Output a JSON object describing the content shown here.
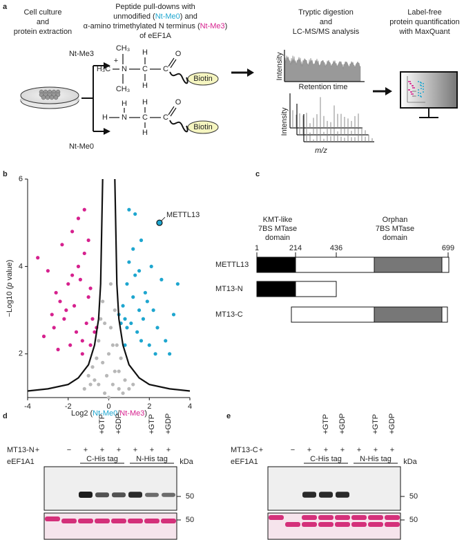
{
  "panel_a": {
    "label": "a",
    "step1": [
      "Cell culture",
      "and",
      "protein extraction"
    ],
    "step2": [
      [
        "Peptide pull-downs with"
      ],
      [
        "unmodified (",
        "Nt-Me0",
        ") and"
      ],
      [
        "α-amino trimethylated N terminus (",
        "Nt-Me3",
        ")"
      ],
      [
        "of eEF1A"
      ]
    ],
    "me3": {
      "label": "Nt-Me3",
      "atoms": [
        "CH₃",
        "H₃C",
        "N",
        "+",
        "CH₃",
        "C",
        "H",
        "H",
        "C",
        "O"
      ],
      "tag": "Biotin"
    },
    "me0": {
      "label": "Nt-Me0",
      "atoms": [
        "H",
        "H",
        "N",
        "C",
        "H",
        "H",
        "C",
        "O"
      ],
      "tag": "Biotin"
    },
    "step3": [
      "Tryptic digestion",
      "and",
      "LC-MS/MS analysis"
    ],
    "spectra": {
      "y_label": "Intensity",
      "x_label": "Retention time",
      "y_label_2": "Intensity",
      "x_label_2": "m/z"
    },
    "step4": [
      "Label-free",
      "protein quantification",
      "with MaxQuant"
    ]
  },
  "chart_data": {
    "type": "scatter",
    "panel_label": "b",
    "x_label": [
      "Log2 (",
      "Nt-Me0",
      "/",
      "Nt-Me3",
      ")"
    ],
    "y_label": [
      "−Log10 (",
      "p",
      " value)"
    ],
    "xlim": [
      -4,
      4
    ],
    "ylim": [
      1,
      6
    ],
    "xticks": [
      -4,
      -2,
      0,
      2,
      4
    ],
    "yticks": [
      2,
      4,
      6
    ],
    "series": [
      {
        "color": "#d6218e",
        "x": [
          -3.5,
          -3.2,
          -3.0,
          -2.8,
          -2.6,
          -2.5,
          -2.3,
          -2.2,
          -2.0,
          -1.9,
          -1.8,
          -1.7,
          -1.6,
          -1.5,
          -1.4,
          -1.3,
          -1.2,
          -1.1,
          -1.0,
          -0.9,
          -0.8,
          -0.7,
          -0.6,
          -2.7,
          -2.1,
          -1.5,
          -1.2,
          -0.9,
          -1.8,
          -2.4,
          -1.3,
          -1.0
        ],
        "y": [
          4.2,
          2.4,
          3.9,
          2.9,
          3.4,
          2.1,
          4.5,
          2.8,
          3.6,
          2.2,
          4.8,
          3.1,
          2.5,
          5.1,
          3.7,
          2.0,
          4.3,
          2.7,
          3.3,
          2.2,
          2.8,
          2.5,
          2.6,
          2.6,
          3.0,
          4.0,
          5.3,
          3.5,
          3.8,
          3.2,
          2.3,
          4.6
        ]
      },
      {
        "color": "#1ea6cf",
        "x": [
          0.5,
          0.6,
          0.7,
          0.8,
          0.9,
          1.0,
          1.1,
          1.2,
          1.3,
          1.4,
          1.5,
          1.6,
          1.7,
          1.8,
          2.0,
          2.1,
          2.2,
          2.4,
          2.6,
          2.8,
          3.0,
          3.2,
          3.4,
          1.0,
          1.3,
          1.6,
          0.9,
          1.2,
          1.9,
          2.3,
          0.8,
          1.5
        ],
        "y": [
          2.9,
          2.7,
          3.1,
          2.2,
          3.6,
          4.1,
          2.7,
          3.3,
          5.2,
          2.5,
          3.9,
          4.6,
          2.8,
          3.4,
          2.2,
          4.0,
          3.0,
          2.6,
          3.7,
          2.3,
          2.0,
          2.9,
          3.6,
          5.3,
          3.8,
          2.3,
          2.6,
          4.4,
          3.2,
          2.0,
          2.8,
          3.0
        ]
      },
      {
        "color": "#b8b8b8",
        "x": [
          -1.2,
          -1.0,
          -0.8,
          -0.6,
          -0.5,
          -0.4,
          -0.3,
          -0.2,
          -0.1,
          0,
          0.1,
          0.2,
          0.3,
          0.4,
          0.5,
          0.6,
          0.8,
          1.0,
          1.2,
          -0.7,
          -0.3,
          0.2,
          0.5,
          -0.2,
          0.1,
          0.3,
          -0.5,
          0.7,
          -0.9,
          0.0
        ],
        "y": [
          1.2,
          1.5,
          1.7,
          1.9,
          2.3,
          2.8,
          3.2,
          1.1,
          1.5,
          2.0,
          2.6,
          1.3,
          3.0,
          2.2,
          1.6,
          1.9,
          1.4,
          1.2,
          1.3,
          1.4,
          1.8,
          2.2,
          1.2,
          2.7,
          3.6,
          1.6,
          1.3,
          1.1,
          1.3,
          1.0
        ]
      }
    ],
    "threshold_curves": [
      {
        "x": [
          -4,
          -3,
          -2,
          -1.5,
          -1,
          -0.7,
          -0.5,
          -0.4,
          -0.3
        ],
        "y": [
          1.15,
          1.2,
          1.3,
          1.45,
          1.75,
          2.2,
          2.8,
          3.6,
          6
        ]
      },
      {
        "x": [
          0.3,
          0.4,
          0.5,
          0.7,
          1,
          1.5,
          2,
          3,
          4
        ],
        "y": [
          6,
          3.6,
          2.8,
          2.2,
          1.75,
          1.45,
          1.3,
          1.2,
          1.15
        ]
      }
    ],
    "highlight": {
      "label": "METTL13",
      "x": 2.5,
      "y": 5.0
    }
  },
  "panel_c": {
    "label": "c",
    "domain_1": [
      "KMT-like",
      "7BS MTase",
      "domain"
    ],
    "domain_2": [
      "Orphan",
      "7BS MTase",
      "domain"
    ],
    "positions": [
      "1",
      "214",
      "436",
      "699"
    ],
    "constructs": [
      "METTL13",
      "MT13-N",
      "MT13-C"
    ]
  },
  "panel_d": {
    "label": "d",
    "row_1": "MT13-N",
    "row_2": "eEF1A1",
    "signs": [
      "+",
      "−",
      "+",
      "+",
      "+",
      "+",
      "+",
      "+"
    ],
    "treatments": [
      null,
      null,
      null,
      "+GTP",
      "+GDP",
      null,
      "+GTP",
      "+GDP"
    ],
    "groups": [
      "C-His tag",
      "N-His tag"
    ],
    "unit": "kDa",
    "markers": [
      "50",
      "50"
    ]
  },
  "panel_e": {
    "label": "e",
    "row_1": "MT13-C",
    "row_2": "eEF1A1",
    "signs": [
      "+",
      "−",
      "+",
      "+",
      "+",
      "+",
      "+",
      "+"
    ],
    "treatments": [
      null,
      null,
      null,
      "+GTP",
      "+GDP",
      null,
      "+GTP",
      "+GDP"
    ],
    "groups": [
      "C-His tag",
      "N-His tag"
    ],
    "unit": "kDa",
    "markers": [
      "50",
      "50"
    ]
  }
}
